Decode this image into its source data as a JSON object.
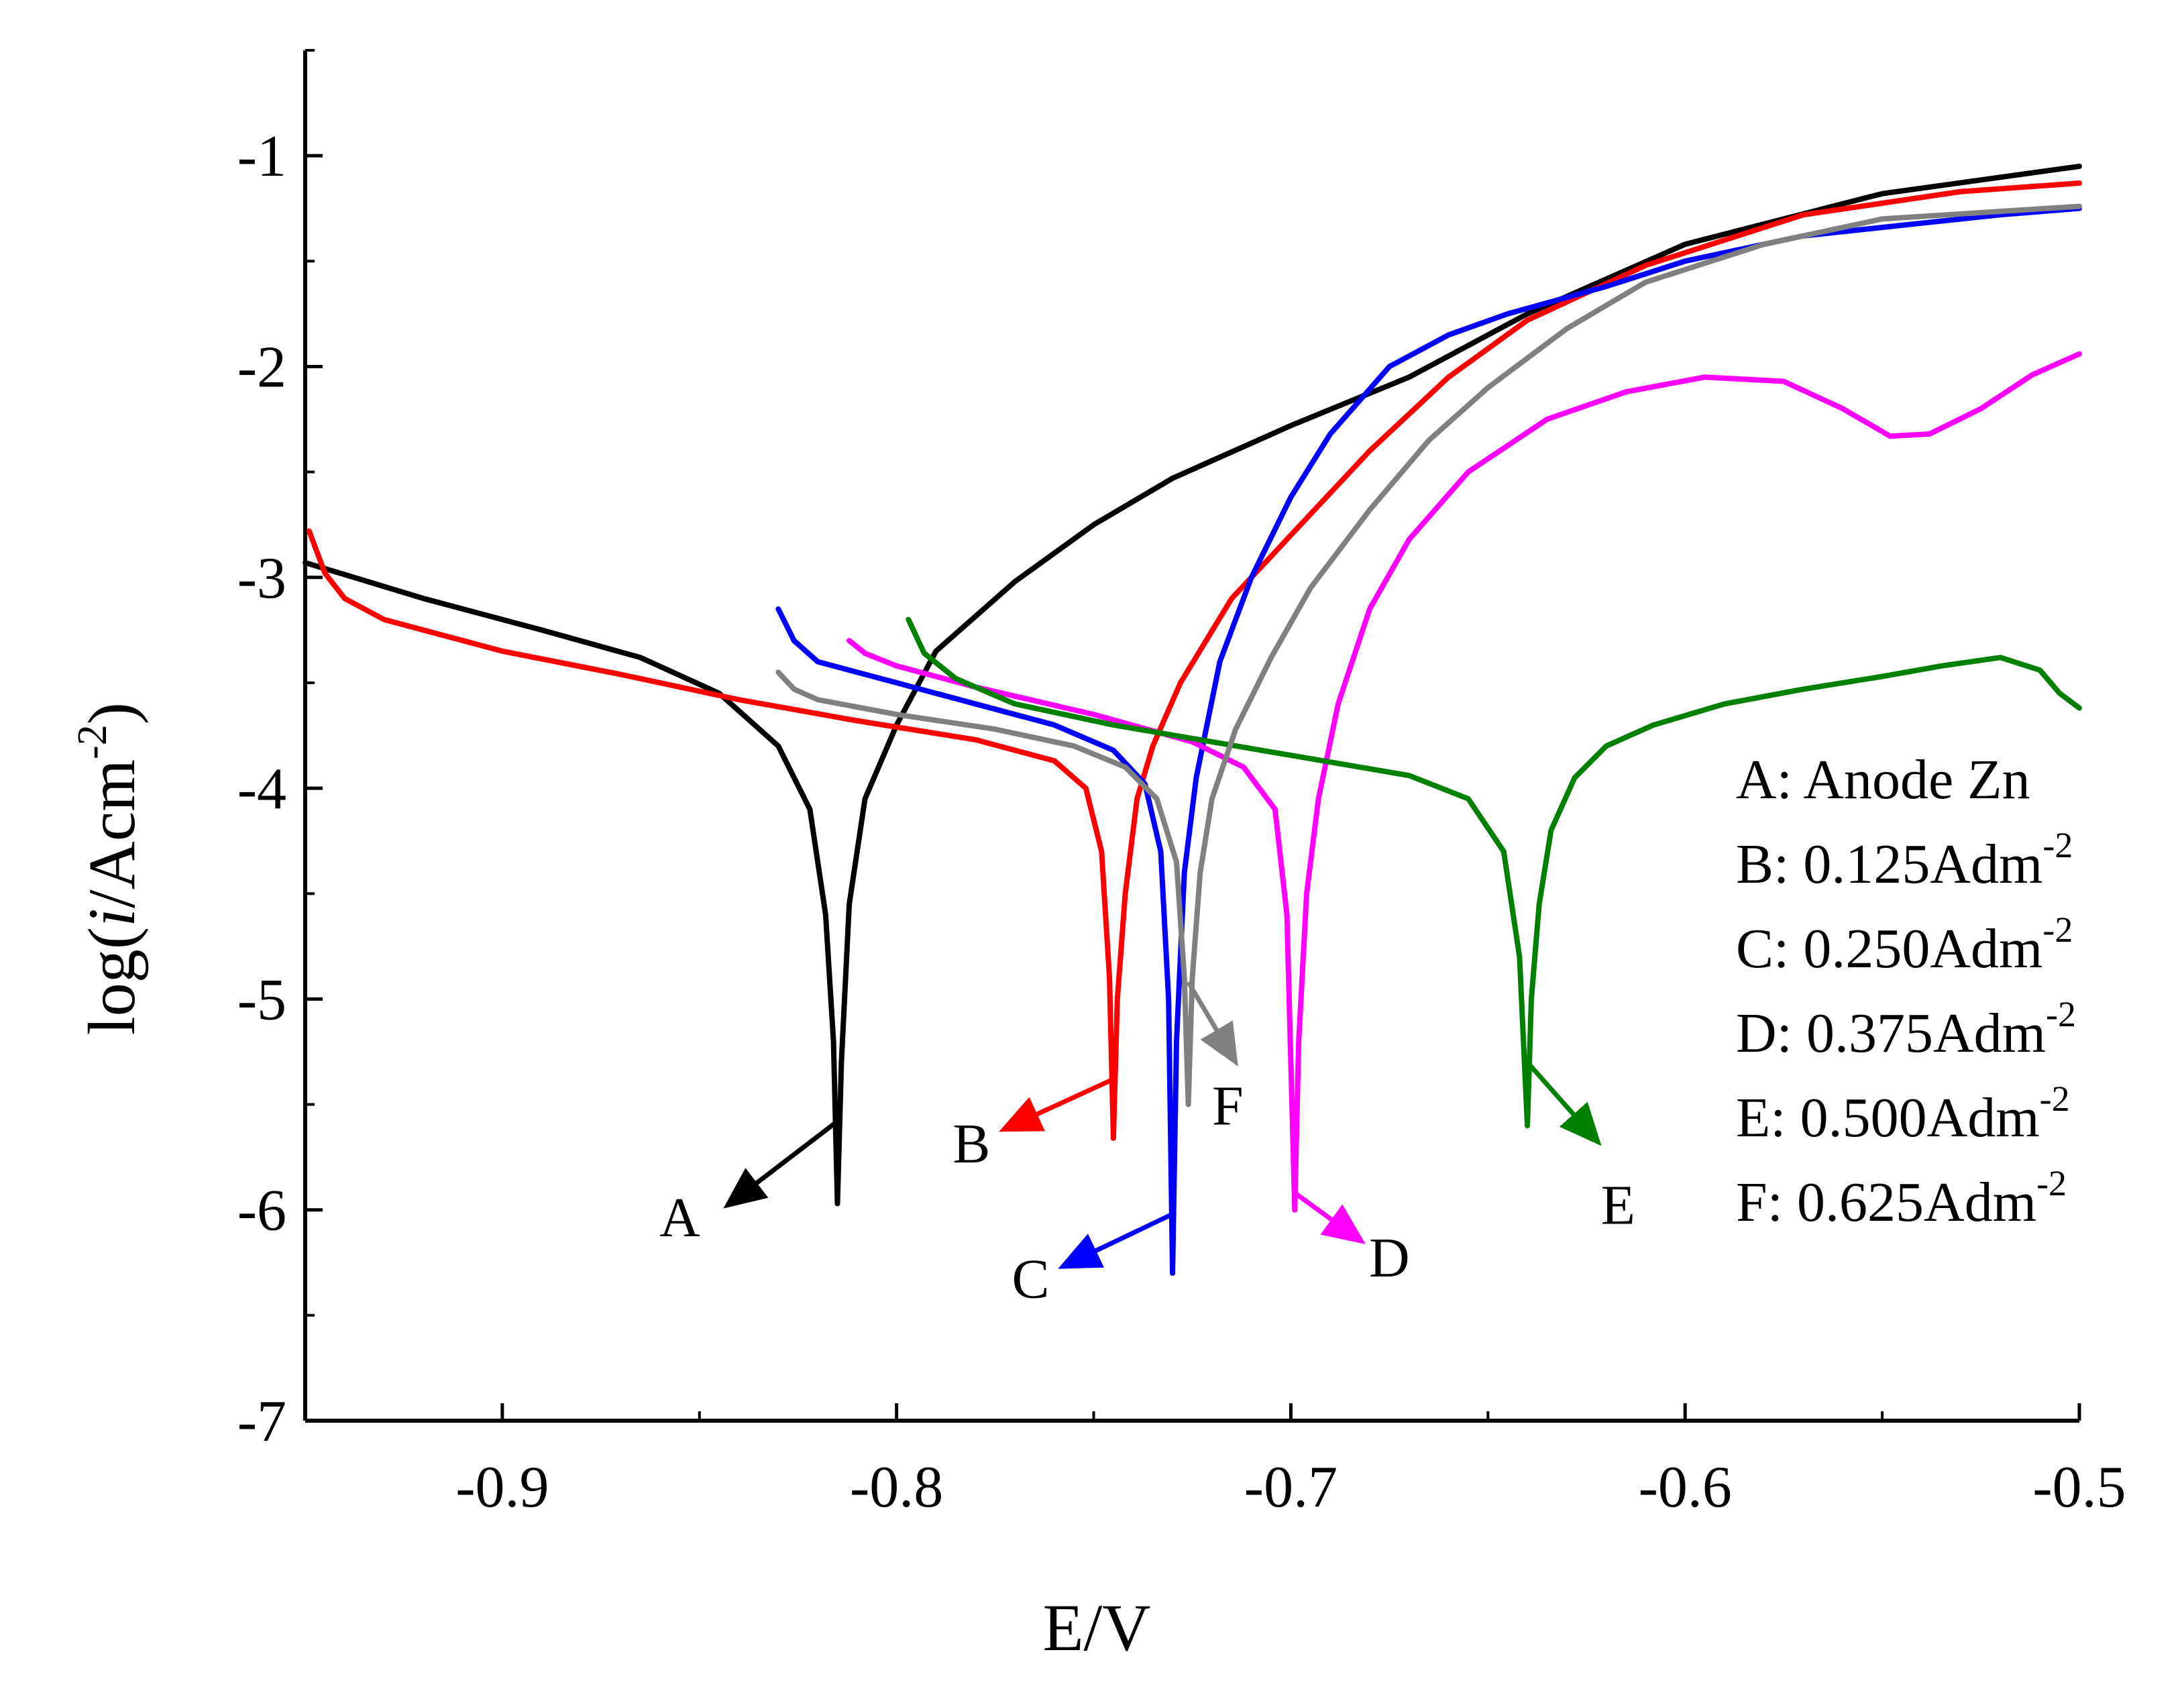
{
  "chart_data": {
    "type": "line",
    "title": "",
    "xlabel": "E/V",
    "ylabel": {
      "prefix": "log(",
      "italic": "i",
      "mid": "/Acm",
      "sup": "-2",
      "suffix": ")"
    },
    "xlim": [
      -0.95,
      -0.5
    ],
    "ylim": [
      -7,
      -0.5
    ],
    "x_ticks": [
      -0.9,
      -0.8,
      -0.7,
      -0.6,
      -0.5
    ],
    "x_tick_labels": [
      "-0.9",
      "-0.8",
      "-0.7",
      "-0.6",
      "-0.5"
    ],
    "y_ticks": [
      -7,
      -6,
      -5,
      -4,
      -3,
      -2,
      -1
    ],
    "y_tick_labels": [
      "-7",
      "-6",
      "-5",
      "-4",
      "-3",
      "-2",
      "-1"
    ],
    "legend": {
      "placement": "bottom-right",
      "entries": [
        {
          "key": "A",
          "text": "A: Anode Zn",
          "sup": ""
        },
        {
          "key": "B",
          "text": "B: 0.125Adm",
          "sup": "-2"
        },
        {
          "key": "C",
          "text": "C: 0.250Adm",
          "sup": "-2"
        },
        {
          "key": "D",
          "text": "D: 0.375Adm",
          "sup": "-2"
        },
        {
          "key": "E",
          "text": "E: 0.500Adm",
          "sup": "-2"
        },
        {
          "key": "F",
          "text": "F: 0.625Adm",
          "sup": "-2"
        }
      ]
    },
    "series": [
      {
        "name": "A",
        "label": "A",
        "color": "#000000",
        "ecorr": -0.815,
        "cathodic": [
          [
            -0.95,
            -2.93
          ],
          [
            -0.92,
            -3.1
          ],
          [
            -0.89,
            -3.25
          ],
          [
            -0.865,
            -3.38
          ],
          [
            -0.845,
            -3.55
          ],
          [
            -0.83,
            -3.8
          ],
          [
            -0.822,
            -4.1
          ],
          [
            -0.818,
            -4.6
          ],
          [
            -0.816,
            -5.2
          ],
          [
            -0.815,
            -5.97
          ]
        ],
        "anodic": [
          [
            -0.815,
            -5.97
          ],
          [
            -0.814,
            -5.3
          ],
          [
            -0.812,
            -4.55
          ],
          [
            -0.808,
            -4.05
          ],
          [
            -0.8,
            -3.7
          ],
          [
            -0.79,
            -3.35
          ],
          [
            -0.77,
            -3.02
          ],
          [
            -0.75,
            -2.75
          ],
          [
            -0.73,
            -2.53
          ],
          [
            -0.7,
            -2.28
          ],
          [
            -0.67,
            -2.05
          ],
          [
            -0.64,
            -1.75
          ],
          [
            -0.6,
            -1.42
          ],
          [
            -0.55,
            -1.18
          ],
          [
            -0.5,
            -1.05
          ]
        ],
        "callout": {
          "points": [
            [
              -0.815,
              -5.58
            ],
            [
              -0.843,
              -5.98
            ]
          ],
          "label_at": [
            -0.855,
            -6.03
          ]
        }
      },
      {
        "name": "B",
        "label": "B",
        "color": "#ff0000",
        "ecorr": -0.745,
        "cathodic": [
          [
            -0.949,
            -2.78
          ],
          [
            -0.945,
            -2.98
          ],
          [
            -0.94,
            -3.1
          ],
          [
            -0.93,
            -3.2
          ],
          [
            -0.9,
            -3.35
          ],
          [
            -0.87,
            -3.46
          ],
          [
            -0.84,
            -3.58
          ],
          [
            -0.81,
            -3.68
          ],
          [
            -0.78,
            -3.77
          ],
          [
            -0.76,
            -3.87
          ],
          [
            -0.752,
            -4.0
          ],
          [
            -0.748,
            -4.3
          ],
          [
            -0.746,
            -4.9
          ],
          [
            -0.745,
            -5.66
          ]
        ],
        "anodic": [
          [
            -0.745,
            -5.66
          ],
          [
            -0.744,
            -5.0
          ],
          [
            -0.742,
            -4.5
          ],
          [
            -0.739,
            -4.05
          ],
          [
            -0.735,
            -3.8
          ],
          [
            -0.728,
            -3.5
          ],
          [
            -0.715,
            -3.1
          ],
          [
            -0.7,
            -2.8
          ],
          [
            -0.68,
            -2.4
          ],
          [
            -0.66,
            -2.05
          ],
          [
            -0.64,
            -1.78
          ],
          [
            -0.61,
            -1.52
          ],
          [
            -0.57,
            -1.28
          ],
          [
            -0.53,
            -1.17
          ],
          [
            -0.5,
            -1.13
          ]
        ],
        "callout": {
          "points": [
            [
              -0.745,
              -5.38
            ],
            [
              -0.773,
              -5.62
            ]
          ],
          "label_at": [
            -0.781,
            -5.68
          ]
        }
      },
      {
        "name": "C",
        "label": "C",
        "color": "#0000ff",
        "ecorr": -0.73,
        "cathodic": [
          [
            -0.83,
            -3.15
          ],
          [
            -0.826,
            -3.3
          ],
          [
            -0.82,
            -3.4
          ],
          [
            -0.8,
            -3.5
          ],
          [
            -0.78,
            -3.6
          ],
          [
            -0.76,
            -3.7
          ],
          [
            -0.745,
            -3.82
          ],
          [
            -0.737,
            -3.98
          ],
          [
            -0.733,
            -4.3
          ],
          [
            -0.731,
            -5.0
          ],
          [
            -0.73,
            -6.3
          ]
        ],
        "anodic": [
          [
            -0.73,
            -6.3
          ],
          [
            -0.729,
            -5.2
          ],
          [
            -0.727,
            -4.4
          ],
          [
            -0.724,
            -3.95
          ],
          [
            -0.718,
            -3.4
          ],
          [
            -0.71,
            -3.0
          ],
          [
            -0.7,
            -2.62
          ],
          [
            -0.69,
            -2.32
          ],
          [
            -0.675,
            -2.0
          ],
          [
            -0.66,
            -1.85
          ],
          [
            -0.645,
            -1.75
          ],
          [
            -0.62,
            -1.62
          ],
          [
            -0.6,
            -1.5
          ],
          [
            -0.57,
            -1.38
          ],
          [
            -0.54,
            -1.32
          ],
          [
            -0.52,
            -1.28
          ],
          [
            -0.5,
            -1.25
          ]
        ],
        "callout": {
          "points": [
            [
              -0.73,
              -6.02
            ],
            [
              -0.758,
              -6.27
            ]
          ],
          "label_at": [
            -0.766,
            -6.32
          ]
        }
      },
      {
        "name": "D",
        "label": "D",
        "color": "#ff00ff",
        "ecorr": -0.699,
        "cathodic": [
          [
            -0.812,
            -3.3
          ],
          [
            -0.808,
            -3.36
          ],
          [
            -0.8,
            -3.42
          ],
          [
            -0.78,
            -3.52
          ],
          [
            -0.75,
            -3.65
          ],
          [
            -0.725,
            -3.78
          ],
          [
            -0.712,
            -3.9
          ],
          [
            -0.704,
            -4.1
          ],
          [
            -0.701,
            -4.6
          ],
          [
            -0.699,
            -6.0
          ]
        ],
        "anodic": [
          [
            -0.699,
            -6.0
          ],
          [
            -0.698,
            -5.2
          ],
          [
            -0.696,
            -4.5
          ],
          [
            -0.693,
            -4.05
          ],
          [
            -0.688,
            -3.6
          ],
          [
            -0.68,
            -3.15
          ],
          [
            -0.67,
            -2.82
          ],
          [
            -0.655,
            -2.5
          ],
          [
            -0.635,
            -2.25
          ],
          [
            -0.615,
            -2.12
          ],
          [
            -0.595,
            -2.05
          ],
          [
            -0.575,
            -2.07
          ],
          [
            -0.56,
            -2.2
          ],
          [
            -0.548,
            -2.33
          ],
          [
            -0.538,
            -2.32
          ],
          [
            -0.525,
            -2.2
          ],
          [
            -0.512,
            -2.04
          ],
          [
            -0.5,
            -1.94
          ]
        ],
        "callout": {
          "points": [
            [
              -0.699,
              -5.92
            ],
            [
              -0.682,
              -6.15
            ]
          ],
          "label_at": [
            -0.675,
            -6.22
          ]
        }
      },
      {
        "name": "E",
        "label": "E",
        "color": "#008000",
        "ecorr": -0.64,
        "cathodic": [
          [
            -0.797,
            -3.2
          ],
          [
            -0.793,
            -3.36
          ],
          [
            -0.785,
            -3.48
          ],
          [
            -0.77,
            -3.6
          ],
          [
            -0.745,
            -3.7
          ],
          [
            -0.72,
            -3.78
          ],
          [
            -0.695,
            -3.86
          ],
          [
            -0.67,
            -3.94
          ],
          [
            -0.655,
            -4.05
          ],
          [
            -0.646,
            -4.3
          ],
          [
            -0.642,
            -4.8
          ],
          [
            -0.64,
            -5.6
          ]
        ],
        "anodic": [
          [
            -0.64,
            -5.6
          ],
          [
            -0.639,
            -5.0
          ],
          [
            -0.637,
            -4.55
          ],
          [
            -0.634,
            -4.2
          ],
          [
            -0.628,
            -3.95
          ],
          [
            -0.62,
            -3.8
          ],
          [
            -0.608,
            -3.7
          ],
          [
            -0.59,
            -3.6
          ],
          [
            -0.57,
            -3.53
          ],
          [
            -0.55,
            -3.47
          ],
          [
            -0.535,
            -3.42
          ],
          [
            -0.52,
            -3.38
          ],
          [
            -0.51,
            -3.44
          ],
          [
            -0.505,
            -3.55
          ],
          [
            -0.5,
            -3.62
          ]
        ],
        "callout": {
          "points": [
            [
              -0.64,
              -5.3
            ],
            [
              -0.622,
              -5.68
            ]
          ],
          "label_at": [
            -0.617,
            -5.97
          ]
        }
      },
      {
        "name": "F",
        "label": "F",
        "color": "#808080",
        "ecorr": -0.726,
        "cathodic": [
          [
            -0.83,
            -3.45
          ],
          [
            -0.826,
            -3.53
          ],
          [
            -0.82,
            -3.58
          ],
          [
            -0.8,
            -3.65
          ],
          [
            -0.775,
            -3.72
          ],
          [
            -0.755,
            -3.8
          ],
          [
            -0.742,
            -3.9
          ],
          [
            -0.734,
            -4.05
          ],
          [
            -0.729,
            -4.35
          ],
          [
            -0.727,
            -4.9
          ],
          [
            -0.726,
            -5.5
          ]
        ],
        "anodic": [
          [
            -0.726,
            -5.5
          ],
          [
            -0.725,
            -4.9
          ],
          [
            -0.723,
            -4.4
          ],
          [
            -0.72,
            -4.05
          ],
          [
            -0.714,
            -3.72
          ],
          [
            -0.705,
            -3.38
          ],
          [
            -0.695,
            -3.05
          ],
          [
            -0.68,
            -2.68
          ],
          [
            -0.665,
            -2.35
          ],
          [
            -0.65,
            -2.1
          ],
          [
            -0.63,
            -1.82
          ],
          [
            -0.61,
            -1.6
          ],
          [
            -0.58,
            -1.42
          ],
          [
            -0.55,
            -1.3
          ],
          [
            -0.5,
            -1.24
          ]
        ],
        "callout": {
          "points": [
            [
              -0.726,
              -4.92
            ],
            [
              -0.714,
              -5.3
            ]
          ],
          "label_at": [
            -0.716,
            -5.5
          ]
        }
      }
    ]
  }
}
